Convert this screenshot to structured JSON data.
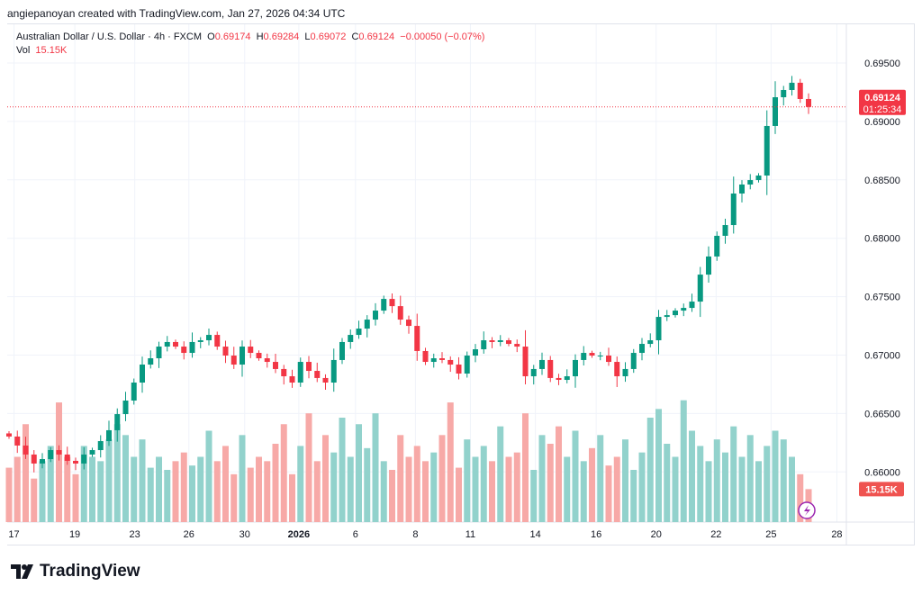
{
  "credit": "angiepanoyan created with TradingView.com, Jan 27, 2026 04:34 UTC",
  "legend": {
    "symbol": "Australian Dollar / U.S. Dollar · 4h · FXCM",
    "o_label": "O",
    "o": "0.69174",
    "h_label": "H",
    "h": "0.69284",
    "l_label": "L",
    "l": "0.69072",
    "c_label": "C",
    "c": "0.69124",
    "change": "−0.00050 (−0.07%)",
    "vol_label": "Vol",
    "vol": "15.15K"
  },
  "price_badge": {
    "price": "0.69124",
    "countdown": "01:25:34"
  },
  "vol_badge": "15.15K",
  "logo": "TradingView",
  "colors": {
    "up": "#089981",
    "down": "#f23645",
    "up_vol": "#92d2cc",
    "down_vol": "#f7a9a7",
    "grid": "#f0f3fa"
  },
  "chart_data": {
    "type": "candlestick",
    "title": "Australian Dollar / U.S. Dollar · 4h · FXCM",
    "ylim": [
      0.6575,
      0.6965
    ],
    "yticks": [
      "0.69500",
      "0.69000",
      "0.68500",
      "0.68000",
      "0.67500",
      "0.67000",
      "0.66500",
      "0.66000"
    ],
    "ytick_values": [
      0.695,
      0.69,
      0.685,
      0.68,
      0.675,
      0.67,
      0.665,
      0.66
    ],
    "xticks": [
      {
        "label": "17",
        "index": 0.6
      },
      {
        "label": "19",
        "index": 7.9
      },
      {
        "label": "23",
        "index": 15.1
      },
      {
        "label": "26",
        "index": 21.6
      },
      {
        "label": "30",
        "index": 28.3
      },
      {
        "label": "2026",
        "index": 34.8
      },
      {
        "label": "6",
        "index": 41.6
      },
      {
        "label": "8",
        "index": 48.8
      },
      {
        "label": "11",
        "index": 55.4
      },
      {
        "label": "14",
        "index": 63.2
      },
      {
        "label": "16",
        "index": 70.5
      },
      {
        "label": "20",
        "index": 77.7
      },
      {
        "label": "22",
        "index": 84.9
      },
      {
        "label": "25",
        "index": 91.5
      },
      {
        "label": "28",
        "index": 99.4
      }
    ],
    "first_open": 0.6633,
    "closes": [
      0.66303,
      0.66226,
      0.66149,
      0.66072,
      0.6611,
      0.66187,
      0.66149,
      0.66095,
      0.66072,
      0.66149,
      0.66187,
      0.66264,
      0.66357,
      0.66495,
      0.66611,
      0.66765,
      0.66919,
      0.66973,
      0.67073,
      0.67112,
      0.67073,
      0.67019,
      0.67112,
      0.67127,
      0.67173,
      0.67073,
      0.66996,
      0.66919,
      0.67073,
      0.67019,
      0.66973,
      0.66942,
      0.66881,
      0.66819,
      0.66765,
      0.66942,
      0.66865,
      0.66804,
      0.66765,
      0.66958,
      0.67112,
      0.67173,
      0.67227,
      0.67304,
      0.67381,
      0.67481,
      0.67419,
      0.67304,
      0.6725,
      0.67035,
      0.66942,
      0.66973,
      0.66958,
      0.66919,
      0.66842,
      0.66996,
      0.6705,
      0.67127,
      0.67112,
      0.67127,
      0.67096,
      0.67073,
      0.66819,
      0.66881,
      0.66958,
      0.66804,
      0.66788,
      0.66819,
      0.66958,
      0.67019,
      0.66996,
      0.66996,
      0.66942,
      0.66819,
      0.66881,
      0.67019,
      0.67096,
      0.67127,
      0.67327,
      0.67342,
      0.67381,
      0.67404,
      0.67458,
      0.67689,
      0.67844,
      0.68021,
      0.68113,
      0.68383,
      0.6846,
      0.68498,
      0.68537,
      0.68961,
      0.69207,
      0.69269,
      0.69331,
      0.69192,
      0.69124
    ],
    "volumes_k": [
      25,
      30,
      45,
      20,
      28,
      35,
      55,
      30,
      22,
      35,
      30,
      28,
      38,
      45,
      40,
      30,
      38,
      25,
      30,
      24,
      28,
      32,
      26,
      30,
      42,
      28,
      35,
      22,
      40,
      25,
      30,
      28,
      36,
      45,
      22,
      35,
      50,
      28,
      40,
      32,
      48,
      30,
      45,
      34,
      50,
      28,
      24,
      40,
      30,
      35,
      28,
      32,
      40,
      55,
      25,
      38,
      30,
      35,
      28,
      44,
      30,
      32,
      50,
      24,
      40,
      36,
      44,
      30,
      42,
      28,
      34,
      40,
      26,
      30,
      38,
      24,
      32,
      48,
      52,
      36,
      30,
      56,
      42,
      35,
      28,
      38,
      32,
      44,
      30,
      40,
      28,
      35,
      42,
      38,
      30,
      22,
      15.15
    ],
    "price_line": 0.69124
  }
}
